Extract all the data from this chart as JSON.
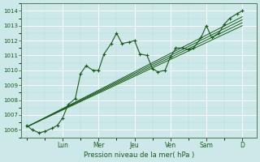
{
  "title": "",
  "xlabel": "Pression niveau de la mer( hPa )",
  "ylabel": "",
  "bg_color": "#cce8e8",
  "grid_color": "#aacccc",
  "line_color": "#1a5c1a",
  "marker_color": "#1a5c1a",
  "ylim": [
    1005.5,
    1014.5
  ],
  "yticks": [
    1006,
    1007,
    1008,
    1009,
    1010,
    1011,
    1012,
    1013,
    1014
  ],
  "day_labels": [
    "Lun",
    "Mer",
    "Jeu",
    "Ven",
    "Sam",
    "D"
  ],
  "day_positions": [
    2.0,
    4.0,
    6.0,
    8.0,
    10.0,
    12.0
  ],
  "xlim": [
    -0.3,
    12.8
  ],
  "series1_x": [
    0.0,
    0.3,
    0.7,
    1.0,
    1.4,
    1.7,
    2.0,
    2.3,
    2.7,
    3.0,
    3.3,
    3.7,
    4.0,
    4.3,
    4.7,
    5.0,
    5.3,
    5.7,
    6.0,
    6.3,
    6.7,
    7.0,
    7.3,
    7.7,
    8.0,
    8.3,
    8.7,
    9.0,
    9.3,
    9.7,
    10.0,
    10.3,
    10.7,
    11.0,
    11.3,
    11.7,
    12.0
  ],
  "series1_y": [
    1006.3,
    1006.0,
    1005.8,
    1005.9,
    1006.1,
    1006.3,
    1006.8,
    1007.7,
    1008.1,
    1009.8,
    1010.3,
    1010.0,
    1010.0,
    1011.1,
    1011.8,
    1012.5,
    1011.8,
    1011.9,
    1012.0,
    1011.1,
    1011.0,
    1010.1,
    1009.9,
    1010.0,
    1010.9,
    1011.5,
    1011.5,
    1011.4,
    1011.5,
    1012.2,
    1013.0,
    1012.2,
    1012.5,
    1013.1,
    1013.5,
    1013.8,
    1014.0
  ],
  "trend_x": [
    0.0,
    12.0
  ],
  "trend_lines": [
    [
      1006.2,
      1013.0
    ],
    [
      1006.2,
      1013.2
    ],
    [
      1006.2,
      1013.4
    ],
    [
      1006.2,
      1013.6
    ]
  ]
}
